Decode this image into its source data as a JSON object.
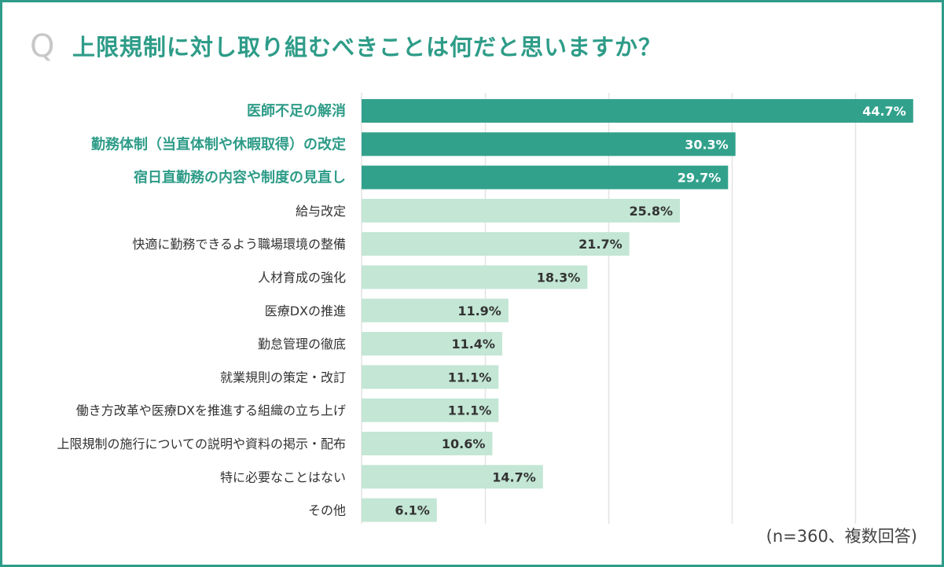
{
  "header": {
    "q_mark": "Q",
    "title": "上限規制に対し取り組むべきことは何だと思いますか？"
  },
  "colors": {
    "frame": "#2e9c88",
    "highlight_bar": "#32a18c",
    "highlight_label": "#2e9c88",
    "normal_bar": "#c3e6d5",
    "normal_label": "#333333",
    "grid": "#e3e3e3"
  },
  "chart_data": {
    "type": "bar",
    "orientation": "horizontal",
    "unit": "%",
    "xlim": [
      0,
      50
    ],
    "grid": true,
    "categories": [
      "医師不足の解消",
      "勤務体制（当直体制や休暇取得）の改定",
      "宿日直勤務の内容や制度の見直し",
      "給与改定",
      "快適に勤務できるよう職場環境の整備",
      "人材育成の強化",
      "医療DXの推進",
      "勤怠管理の徹底",
      "就業規則の策定・改訂",
      "働き方改革や医療DXを推進する組織の立ち上げ",
      "上限規制の施行についての説明や資料の掲示・配布",
      "特に必要なことはない",
      "その他"
    ],
    "values": [
      44.7,
      30.3,
      29.7,
      25.8,
      21.7,
      18.3,
      11.9,
      11.4,
      11.1,
      11.1,
      10.6,
      14.7,
      6.1
    ],
    "value_labels": [
      "44.7%",
      "30.3%",
      "29.7%",
      "25.8%",
      "21.7%",
      "18.3%",
      "11.9%",
      "11.4%",
      "11.1%",
      "11.1%",
      "10.6%",
      "14.7%",
      "6.1%"
    ],
    "highlighted": [
      true,
      true,
      true,
      false,
      false,
      false,
      false,
      false,
      false,
      false,
      false,
      false,
      false
    ],
    "note": "(n=360、複数回答)"
  }
}
